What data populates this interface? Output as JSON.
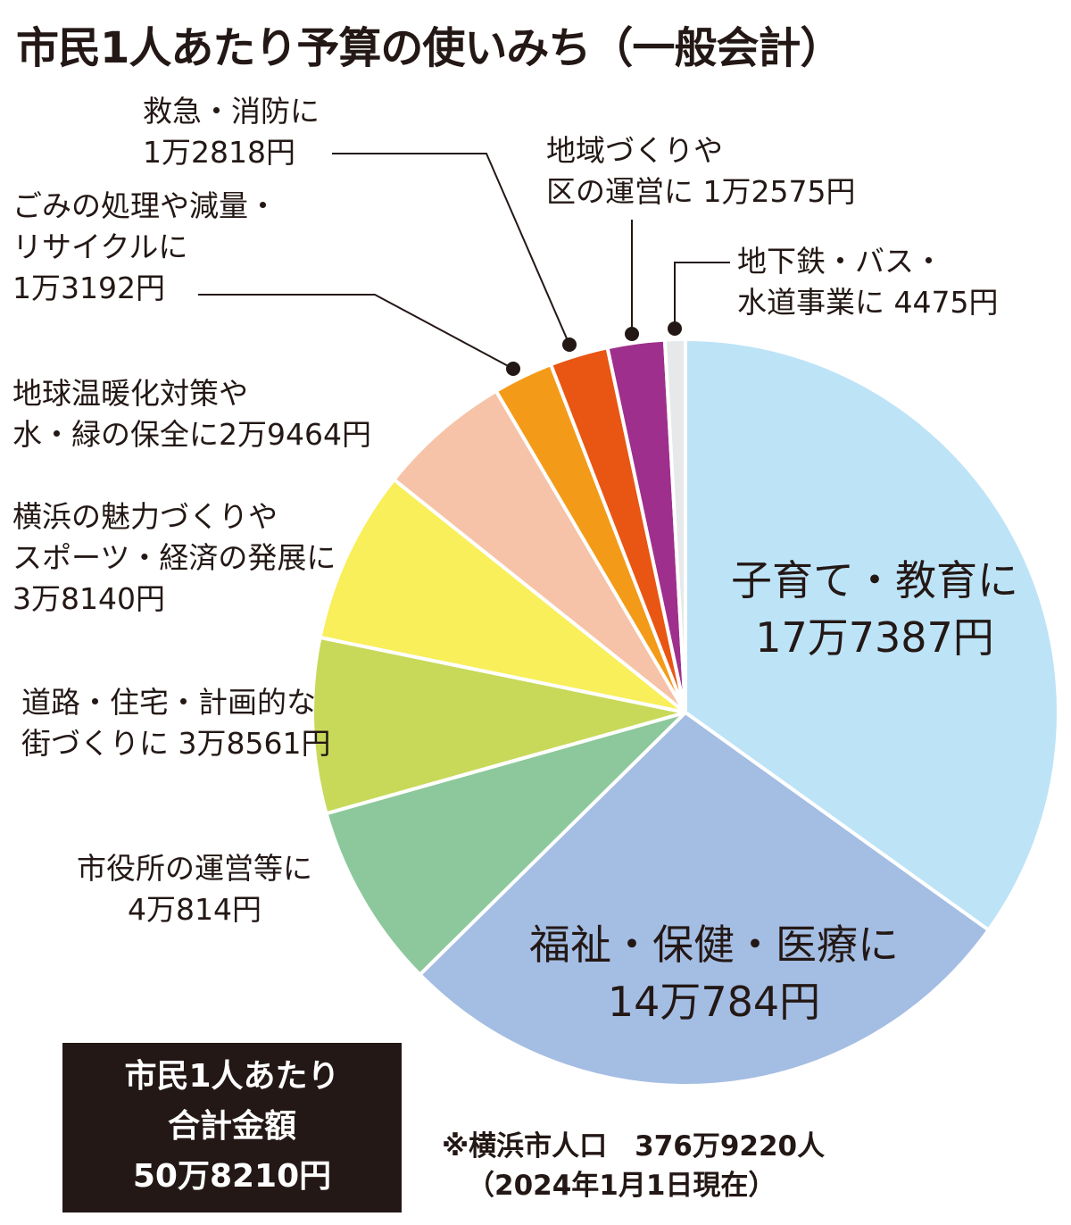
{
  "title": "市民1人あたり予算の使いみち（一般会計）",
  "colors": {
    "text": "#231815",
    "slices": [
      "#bde3f7",
      "#a4bde3",
      "#8cc89b",
      "#c8d95a",
      "#f8ef5a",
      "#f6c3a8",
      "#f39b18",
      "#e95513",
      "#9f2f8c",
      "#e6e8e9"
    ]
  },
  "chart_data": {
    "type": "pie",
    "unit": "円",
    "categories": [
      "子育て・教育に",
      "福祉・保健・医療に",
      "市役所の運営等に",
      "道路・住宅・計画的な街づくりに",
      "横浜の魅力づくりやスポーツ・経済の発展に",
      "地球温暖化対策や水・緑の保全に",
      "ごみの処理や減量・リサイクルに",
      "救急・消防に",
      "地域づくりや区の運営に",
      "地下鉄・バス・水道事業に"
    ],
    "values": [
      177387,
      140784,
      40814,
      38561,
      38140,
      29464,
      13192,
      12818,
      12575,
      4475
    ],
    "data_labels": [
      {
        "lines": [
          "子育て・教育に",
          "17万7387円"
        ]
      },
      {
        "lines": [
          "福祉・保健・医療に",
          "14万784円"
        ]
      },
      {
        "lines": [
          "市役所の運営等に",
          "4万814円"
        ]
      },
      {
        "lines": [
          "道路・住宅・計画的な",
          "街づくりに 3万8561円"
        ]
      },
      {
        "lines": [
          "横浜の魅力づくりや",
          "スポーツ・経済の発展に",
          "3万8140円"
        ]
      },
      {
        "lines": [
          "地球温暖化対策や",
          "水・緑の保全に2万9464円"
        ]
      },
      {
        "lines": [
          "ごみの処理や減量・",
          "リサイクルに",
          "1万3192円"
        ]
      },
      {
        "lines": [
          "救急・消防に",
          "1万2818円"
        ]
      },
      {
        "lines": [
          "地域づくりや",
          "区の運営に 1万2575円"
        ]
      },
      {
        "lines": [
          "地下鉄・バス・",
          "水道事業に 4475円"
        ]
      }
    ]
  },
  "total_box": {
    "lines": [
      "市民1人あたり",
      "合計金額",
      "50万8210円"
    ]
  },
  "note": {
    "lines": [
      "※横浜市人口　376万9220人",
      "（2024年1月1日現在）"
    ]
  }
}
